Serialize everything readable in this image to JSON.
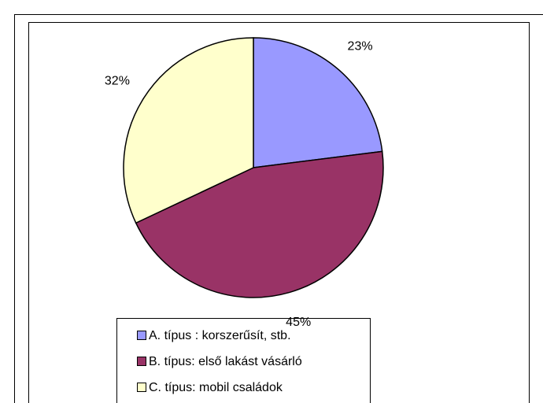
{
  "chart_data": {
    "type": "pie",
    "categories": [
      "A. típus : korszerűsít, stb.",
      "B. típus: első lakást vásárló",
      "C. típus: mobil családok"
    ],
    "values": [
      23,
      45,
      32
    ],
    "value_labels": [
      "23%",
      "45%",
      "32%"
    ],
    "colors": [
      "#9999ff",
      "#993366",
      "#ffffcc"
    ],
    "legend": "bottom"
  }
}
